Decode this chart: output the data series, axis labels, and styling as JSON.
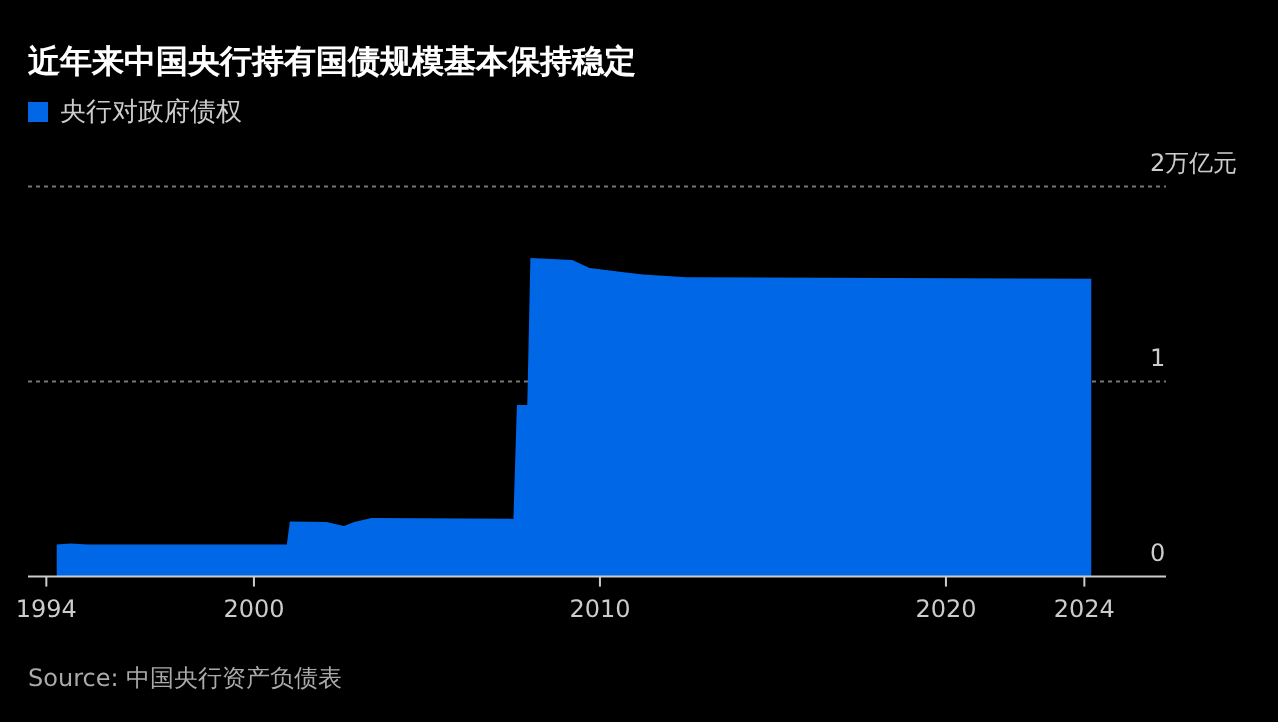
{
  "chart_data": {
    "type": "area",
    "title": "近年来中国央行持有国债规模基本保持稳定",
    "annotations": [
      "Source: 中国央行资产负债表"
    ],
    "x": [
      1994.3,
      1994.7,
      1995.2,
      2000.95,
      2001.04,
      2002.1,
      2002.6,
      2002.9,
      2003.4,
      2007.5,
      2007.6,
      2007.9,
      2007.99,
      2009.2,
      2009.7,
      2010.75,
      2011.25,
      2012.5,
      2024.2
    ],
    "series": [
      {
        "name": "央行对政府债权",
        "color": "#0068e6",
        "values": [
          0.164,
          0.17,
          0.164,
          0.164,
          0.283,
          0.28,
          0.26,
          0.28,
          0.3,
          0.296,
          0.88,
          0.88,
          1.634,
          1.624,
          1.583,
          1.56,
          1.549,
          1.535,
          1.528
        ]
      }
    ],
    "xlim": [
      1993.47,
      2026.36
    ],
    "ylim": [
      0,
      2
    ],
    "xticks": [
      1994,
      2000,
      2010,
      2020,
      2024
    ],
    "yticks": [
      0,
      1,
      {
        "value": 2,
        "label": "2万亿元"
      }
    ],
    "grid": "y",
    "legend": "top left"
  }
}
